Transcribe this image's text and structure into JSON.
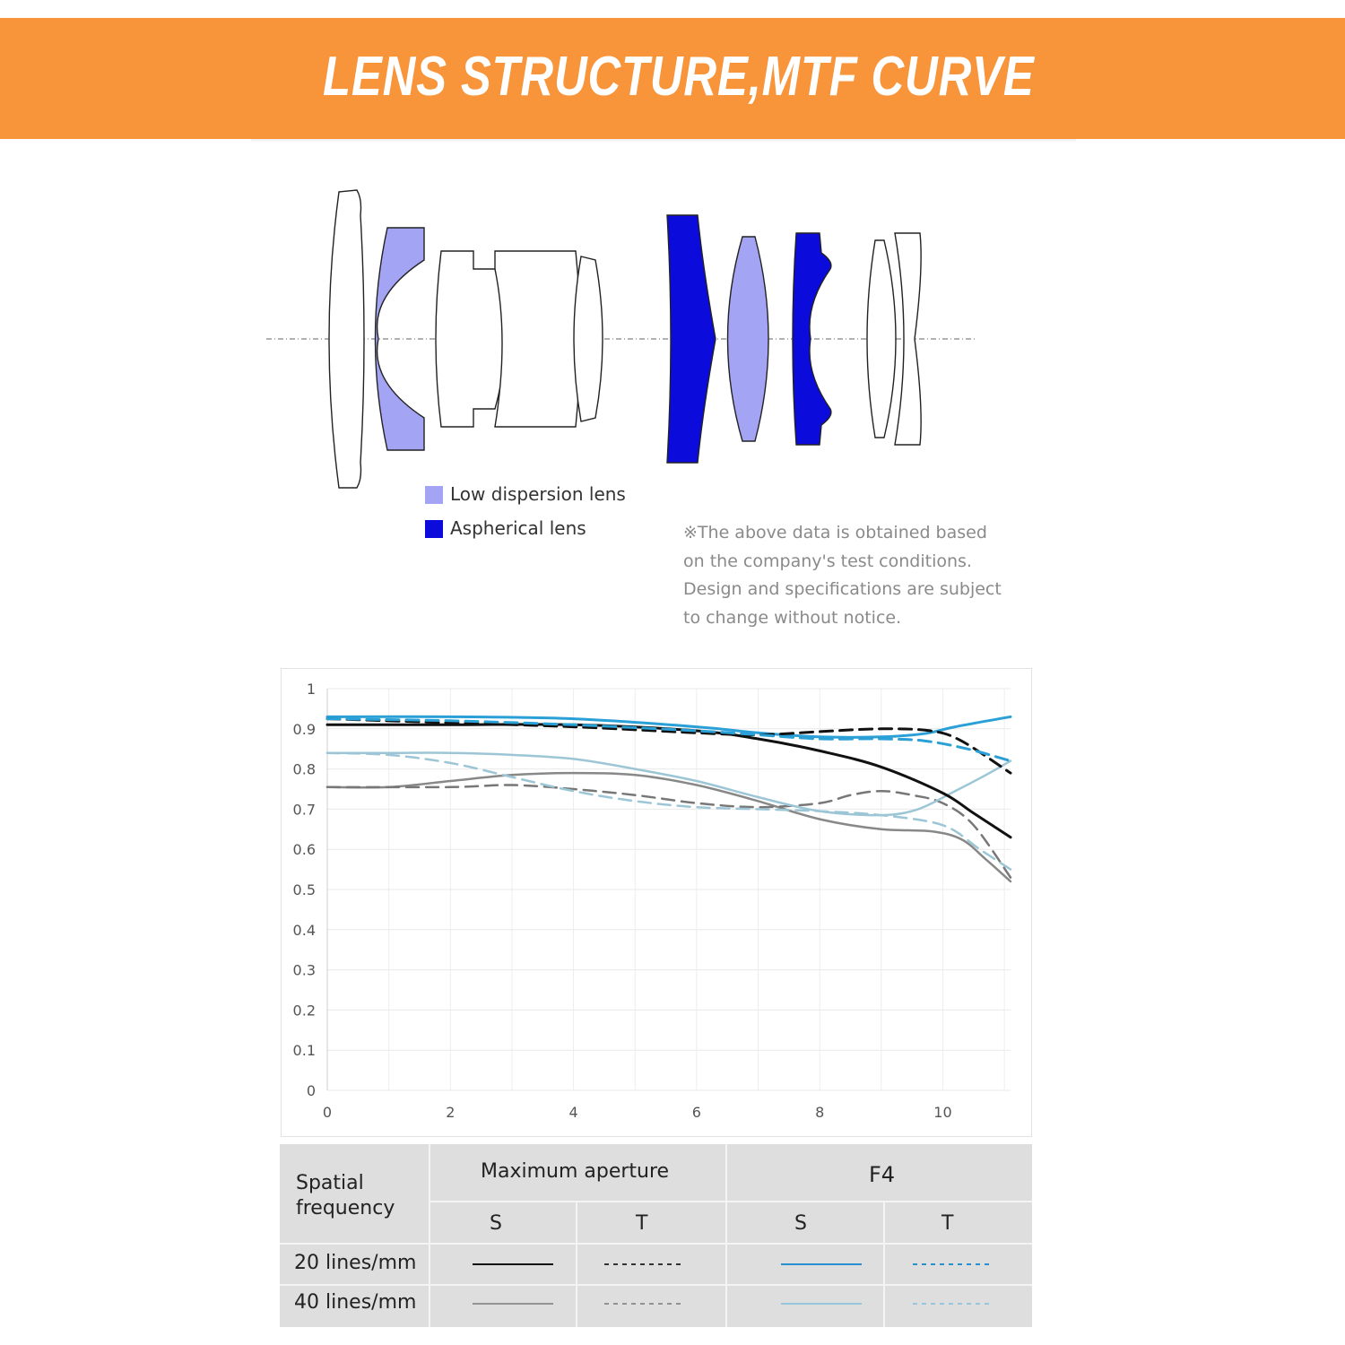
{
  "banner": {
    "title": "LENS STRUCTURE,MTF CURVE"
  },
  "lens_legend": [
    {
      "label": "Low dispersion lens",
      "color": "#a4a4f4"
    },
    {
      "label": "Aspherical lens",
      "color": "#0b0bdc"
    }
  ],
  "note": {
    "lines": [
      "※The above data is obtained based",
      "on the company's test conditions.",
      "Design and specifications are subject",
      "to change without notice."
    ]
  },
  "colors": {
    "low_dispersion": "#a4a4f4",
    "aspherical": "#0b0bdc",
    "banner": "#f8943a"
  },
  "chart_data": {
    "type": "line",
    "title": "",
    "xlabel": "",
    "ylabel": "",
    "xlim": [
      0,
      11.1
    ],
    "ylim": [
      0,
      1
    ],
    "x_ticks": [
      0,
      2,
      4,
      6,
      8,
      10
    ],
    "y_ticks": [
      0,
      0.1,
      0.2,
      0.3,
      0.4,
      0.5,
      0.6,
      0.7,
      0.8,
      0.9,
      1
    ],
    "grid": true,
    "series": [
      {
        "name": "Maximum aperture S 20 lines/mm",
        "color": "#111111",
        "dash": "solid",
        "width": 3,
        "points": [
          [
            0,
            0.91
          ],
          [
            2,
            0.91
          ],
          [
            4,
            0.91
          ],
          [
            6,
            0.895
          ],
          [
            7,
            0.875
          ],
          [
            8,
            0.845
          ],
          [
            9,
            0.805
          ],
          [
            10,
            0.74
          ],
          [
            10.5,
            0.69
          ],
          [
            11.1,
            0.63
          ]
        ]
      },
      {
        "name": "Maximum aperture T 20 lines/mm",
        "color": "#111111",
        "dash": "dashed",
        "width": 3,
        "points": [
          [
            0,
            0.925
          ],
          [
            2,
            0.915
          ],
          [
            4,
            0.905
          ],
          [
            6,
            0.89
          ],
          [
            7,
            0.885
          ],
          [
            8,
            0.893
          ],
          [
            9,
            0.9
          ],
          [
            9.8,
            0.895
          ],
          [
            10.3,
            0.87
          ],
          [
            11.1,
            0.79
          ]
        ]
      },
      {
        "name": "F4 S 20 lines/mm",
        "color": "#2aa0d6",
        "dash": "solid",
        "width": 3,
        "points": [
          [
            0,
            0.93
          ],
          [
            2,
            0.93
          ],
          [
            4,
            0.925
          ],
          [
            6,
            0.905
          ],
          [
            7,
            0.89
          ],
          [
            8,
            0.88
          ],
          [
            9,
            0.88
          ],
          [
            9.7,
            0.888
          ],
          [
            10.2,
            0.905
          ],
          [
            11.1,
            0.93
          ]
        ]
      },
      {
        "name": "F4 T 20 lines/mm",
        "color": "#2aa0d6",
        "dash": "dashed",
        "width": 3,
        "points": [
          [
            0,
            0.925
          ],
          [
            2,
            0.92
          ],
          [
            4,
            0.91
          ],
          [
            6,
            0.895
          ],
          [
            7,
            0.885
          ],
          [
            8,
            0.875
          ],
          [
            9,
            0.875
          ],
          [
            9.7,
            0.87
          ],
          [
            10.4,
            0.85
          ],
          [
            11.1,
            0.82
          ]
        ]
      },
      {
        "name": "Maximum aperture S 40 lines/mm",
        "color": "#888888",
        "dash": "solid",
        "width": 2.5,
        "points": [
          [
            0,
            0.755
          ],
          [
            1,
            0.755
          ],
          [
            2,
            0.77
          ],
          [
            3,
            0.785
          ],
          [
            4,
            0.79
          ],
          [
            5,
            0.785
          ],
          [
            6,
            0.76
          ],
          [
            7,
            0.72
          ],
          [
            8,
            0.675
          ],
          [
            9,
            0.65
          ],
          [
            9.8,
            0.645
          ],
          [
            10.3,
            0.625
          ],
          [
            10.7,
            0.575
          ],
          [
            11.1,
            0.52
          ]
        ]
      },
      {
        "name": "Maximum aperture T 40 lines/mm",
        "color": "#777777",
        "dash": "dashed",
        "width": 2.5,
        "points": [
          [
            0,
            0.755
          ],
          [
            2,
            0.755
          ],
          [
            3,
            0.76
          ],
          [
            4,
            0.75
          ],
          [
            5,
            0.735
          ],
          [
            6,
            0.715
          ],
          [
            7,
            0.705
          ],
          [
            8,
            0.715
          ],
          [
            8.5,
            0.735
          ],
          [
            9,
            0.745
          ],
          [
            9.5,
            0.735
          ],
          [
            10,
            0.715
          ],
          [
            10.5,
            0.66
          ],
          [
            11.1,
            0.53
          ]
        ]
      },
      {
        "name": "F4 S 40 lines/mm",
        "color": "#9cc6d6",
        "dash": "solid",
        "width": 2.5,
        "points": [
          [
            0,
            0.84
          ],
          [
            1,
            0.84
          ],
          [
            2,
            0.84
          ],
          [
            3,
            0.835
          ],
          [
            4,
            0.825
          ],
          [
            5,
            0.8
          ],
          [
            6,
            0.77
          ],
          [
            7,
            0.73
          ],
          [
            8,
            0.695
          ],
          [
            9,
            0.685
          ],
          [
            9.6,
            0.7
          ],
          [
            10.2,
            0.745
          ],
          [
            10.7,
            0.785
          ],
          [
            11.1,
            0.82
          ]
        ]
      },
      {
        "name": "F4 T 40 lines/mm",
        "color": "#9cc6d6",
        "dash": "dashed",
        "width": 2.5,
        "points": [
          [
            0,
            0.84
          ],
          [
            1,
            0.835
          ],
          [
            2,
            0.815
          ],
          [
            3,
            0.78
          ],
          [
            4,
            0.745
          ],
          [
            5,
            0.72
          ],
          [
            6,
            0.705
          ],
          [
            7,
            0.7
          ],
          [
            8,
            0.695
          ],
          [
            9,
            0.685
          ],
          [
            10,
            0.66
          ],
          [
            10.6,
            0.6
          ],
          [
            11.1,
            0.55
          ]
        ]
      }
    ]
  },
  "mtf_table": {
    "row_header": "Spatial frequency",
    "row_header_lines": [
      "Spatial",
      "frequency"
    ],
    "groups": [
      "Maximum aperture",
      "F4"
    ],
    "sub_headers": [
      "S",
      "T",
      "S",
      "T"
    ],
    "rows": [
      {
        "label": "20 lines/mm",
        "samples": [
          {
            "color": "#111111",
            "dash": "solid"
          },
          {
            "color": "#333333",
            "dash": "dashed"
          },
          {
            "color": "#2a8fd0",
            "dash": "solid"
          },
          {
            "color": "#2a8fd0",
            "dash": "dashed"
          }
        ]
      },
      {
        "label": "40 lines/mm",
        "samples": [
          {
            "color": "#888888",
            "dash": "solid"
          },
          {
            "color": "#888888",
            "dash": "dashed"
          },
          {
            "color": "#8cc3dc",
            "dash": "solid"
          },
          {
            "color": "#8cc3dc",
            "dash": "dashed"
          }
        ]
      }
    ]
  }
}
